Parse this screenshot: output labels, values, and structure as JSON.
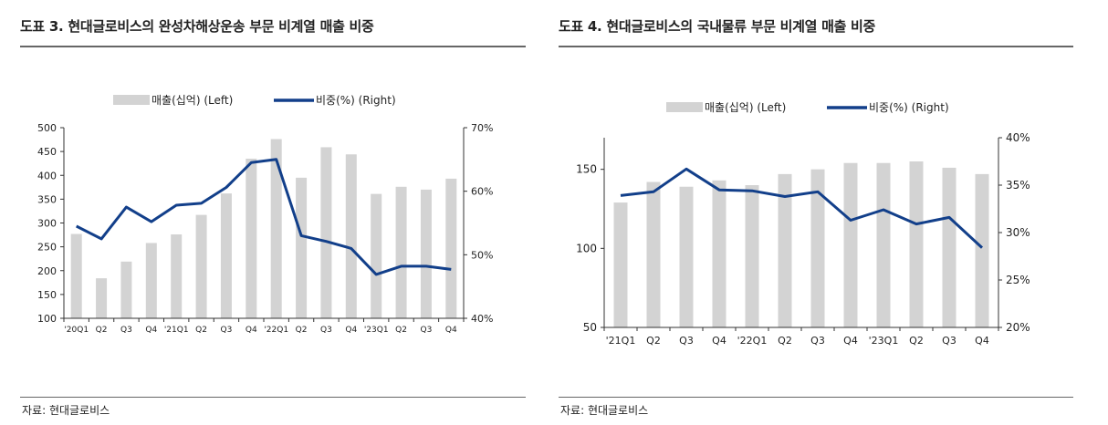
{
  "charts": [
    {
      "title": "도표 3. 현대글로비스의 완성차해상운송 부문 비계열 매출 비중",
      "source": "자료: 현대글로비스"
    },
    {
      "title": "도표 4. 현대글로비스의 국내물류 부문 비계열 매출 비중",
      "source": "자료: 현대글로비스"
    }
  ],
  "colors": {
    "bar": "#d3d3d3",
    "line": "#123f8a",
    "axis": "#333333"
  },
  "chart_data": [
    {
      "type": "bar",
      "categories": [
        "'20Q1",
        "Q2",
        "Q3",
        "Q4",
        "'21Q1",
        "Q2",
        "Q3",
        "Q4",
        "'22Q1",
        "Q2",
        "Q3",
        "Q4",
        "'23Q1",
        "Q2",
        "Q3",
        "Q4"
      ],
      "series": [
        {
          "name": "매출(십억) (Left)",
          "type": "bar",
          "axis": "left",
          "values": [
            277,
            184,
            219,
            258,
            276,
            317,
            362,
            435,
            476,
            395,
            459,
            444,
            361,
            376,
            370,
            393
          ]
        },
        {
          "name": "비중(%) (Right)",
          "type": "line",
          "axis": "right",
          "values": [
            54.5,
            52.5,
            57.5,
            55.2,
            57.8,
            58.1,
            60.6,
            64.5,
            65.0,
            53.0,
            52.1,
            51.0,
            46.9,
            48.2,
            48.2,
            47.7
          ]
        }
      ],
      "ylim_left": [
        100,
        500
      ],
      "yticks_left": [
        100,
        150,
        200,
        250,
        300,
        350,
        400,
        450,
        500
      ],
      "ylim_right": [
        40,
        70
      ],
      "yticks_right": [
        "40%",
        "50%",
        "60%",
        "70%"
      ],
      "yticks_right_values": [
        40,
        50,
        60,
        70
      ],
      "legend": "top"
    },
    {
      "type": "bar",
      "categories": [
        "'21Q1",
        "Q2",
        "Q3",
        "Q4",
        "'22Q1",
        "Q2",
        "Q3",
        "Q4",
        "'23Q1",
        "Q2",
        "Q3",
        "Q4"
      ],
      "series": [
        {
          "name": "매출(십억) (Left)",
          "type": "bar",
          "axis": "left",
          "values": [
            129,
            142,
            139,
            143,
            140,
            147,
            150,
            154,
            154,
            155,
            151,
            147
          ]
        },
        {
          "name": "비중(%) (Right)",
          "type": "line",
          "axis": "right",
          "values": [
            33.9,
            34.3,
            36.7,
            34.5,
            34.4,
            33.8,
            34.3,
            31.3,
            32.4,
            30.9,
            31.6,
            28.4
          ]
        }
      ],
      "ylim_left": [
        50,
        170
      ],
      "yticks_left": [
        50,
        100,
        150
      ],
      "ylim_right": [
        20,
        40
      ],
      "yticks_right": [
        "20%",
        "25%",
        "30%",
        "35%",
        "40%"
      ],
      "yticks_right_values": [
        20,
        25,
        30,
        35,
        40
      ],
      "legend": "top"
    }
  ]
}
